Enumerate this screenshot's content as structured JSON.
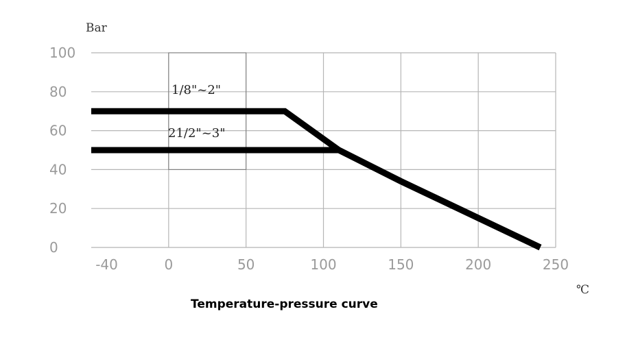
{
  "chart_data": {
    "type": "line",
    "ylabel": "Bar",
    "xlabel": "℃",
    "xlim": [
      -50,
      250
    ],
    "ylim": [
      0,
      100
    ],
    "x_ticks": [
      "-40",
      "0",
      "50",
      "100",
      "150",
      "200",
      "250"
    ],
    "x_tick_values": [
      -40,
      0,
      50,
      100,
      150,
      200,
      250
    ],
    "y_ticks": [
      "100",
      "80",
      "60",
      "40",
      "20",
      "0"
    ],
    "y_tick_values": [
      100,
      80,
      60,
      40,
      20,
      0
    ],
    "grid": true,
    "series": [
      {
        "name": "1/8\"~2\"",
        "points": [
          [
            -50,
            70
          ],
          [
            75,
            70
          ],
          [
            110,
            50
          ],
          [
            150,
            34
          ],
          [
            240,
            0
          ]
        ]
      },
      {
        "name": "21/2\"~3\"",
        "points": [
          [
            -50,
            50
          ],
          [
            110,
            50
          ],
          [
            150,
            34
          ],
          [
            240,
            0
          ]
        ]
      }
    ],
    "highlight_box": {
      "x": [
        0,
        50
      ],
      "y": [
        40,
        100
      ]
    }
  },
  "caption": "Temperature-pressure curve"
}
